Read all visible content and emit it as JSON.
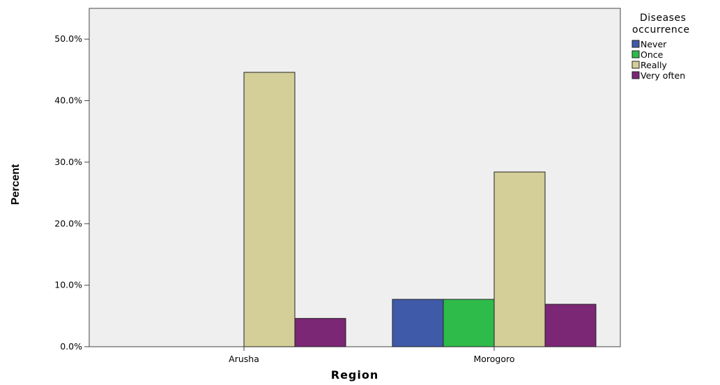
{
  "chart_data": {
    "type": "bar",
    "categories": [
      "Arusha",
      "Morogoro"
    ],
    "series": [
      {
        "name": "Never",
        "color": "#3f5aa8",
        "values": [
          0,
          7.7
        ]
      },
      {
        "name": "Once",
        "color": "#2fbb4a",
        "values": [
          0,
          7.7
        ]
      },
      {
        "name": "Really",
        "color": "#d4ce98",
        "values": [
          44.6,
          28.4
        ]
      },
      {
        "name": "Very often",
        "color": "#7b2775",
        "values": [
          4.6,
          6.9
        ]
      }
    ],
    "title": "",
    "xlabel": "Region",
    "ylabel": "Percent",
    "ylim": [
      0,
      55
    ],
    "yticks": [
      0,
      10,
      20,
      30,
      40,
      50
    ],
    "ytick_labels": [
      "0.0%",
      "10.0%",
      "20.0%",
      "30.0%",
      "40.0%",
      "50.0%"
    ],
    "legend": {
      "title_line1": "Diseases",
      "title_line2": "occurrence",
      "placement": "right"
    },
    "plot_background": "#efefef",
    "grid": false
  }
}
